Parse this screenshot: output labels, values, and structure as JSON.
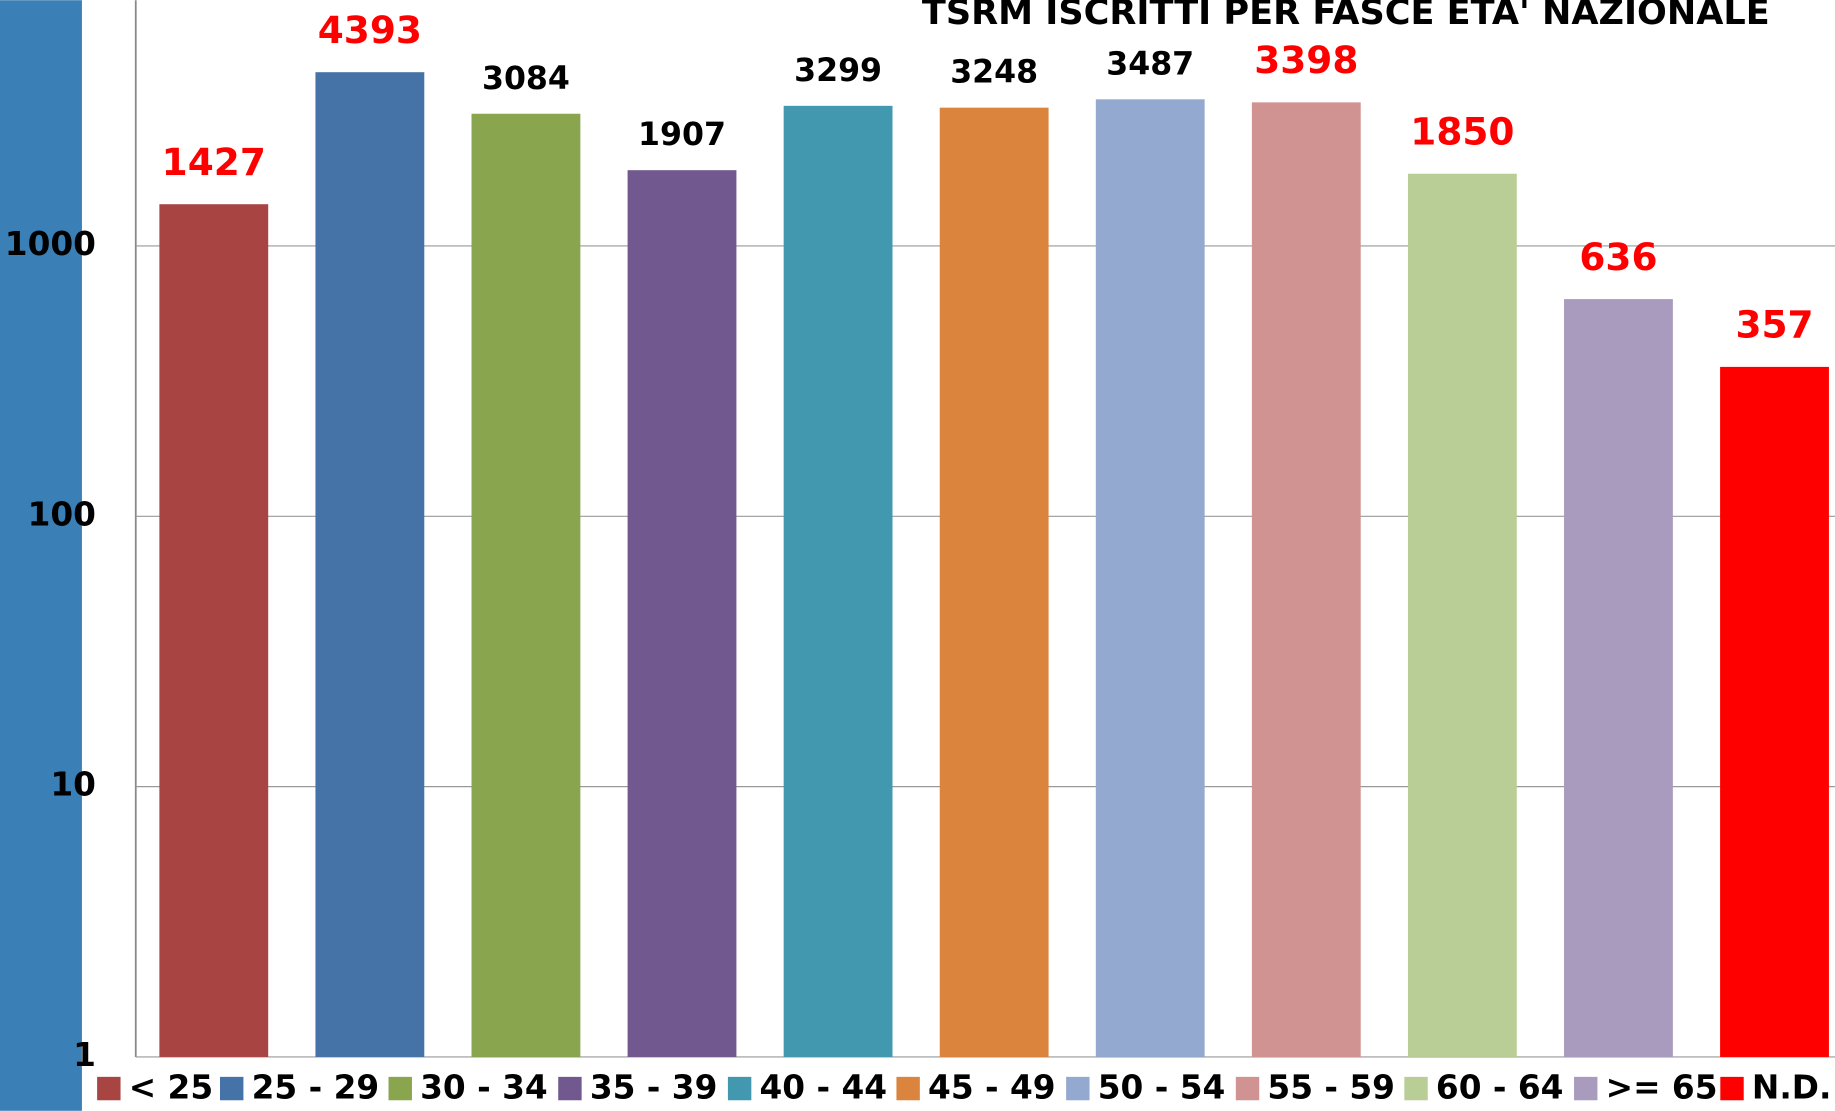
{
  "chart_data": {
    "type": "bar",
    "title": "TSRM ISCRITTI PER FASCE ETA' NAZIONALE",
    "categories": [
      "< 25",
      "25 - 29",
      "30 - 34",
      "35 - 39",
      "40 - 44",
      "45 - 49",
      "50 - 54",
      "55 - 59",
      "60 - 64",
      ">= 65",
      "N.D."
    ],
    "values": [
      1427,
      4393,
      3084,
      1907,
      3299,
      3248,
      3487,
      3398,
      1850,
      636,
      357
    ],
    "colors": [
      "#a84442",
      "#4572a7",
      "#89a54e",
      "#71588f",
      "#4198af",
      "#db843d",
      "#93a9cf",
      "#d19392",
      "#b9cd96",
      "#a99bbd",
      "#ff0000"
    ],
    "value_label_colors": [
      "#ff0000",
      "#ff0000",
      "#000000",
      "#000000",
      "#000000",
      "#000000",
      "#000000",
      "#ff0000",
      "#ff0000",
      "#ff0000",
      "#ff0000"
    ],
    "ylim": [
      1,
      10000
    ],
    "yticks": [
      1,
      10,
      100,
      1000
    ],
    "log_scale": true,
    "grid": true,
    "legend": "bottom"
  }
}
